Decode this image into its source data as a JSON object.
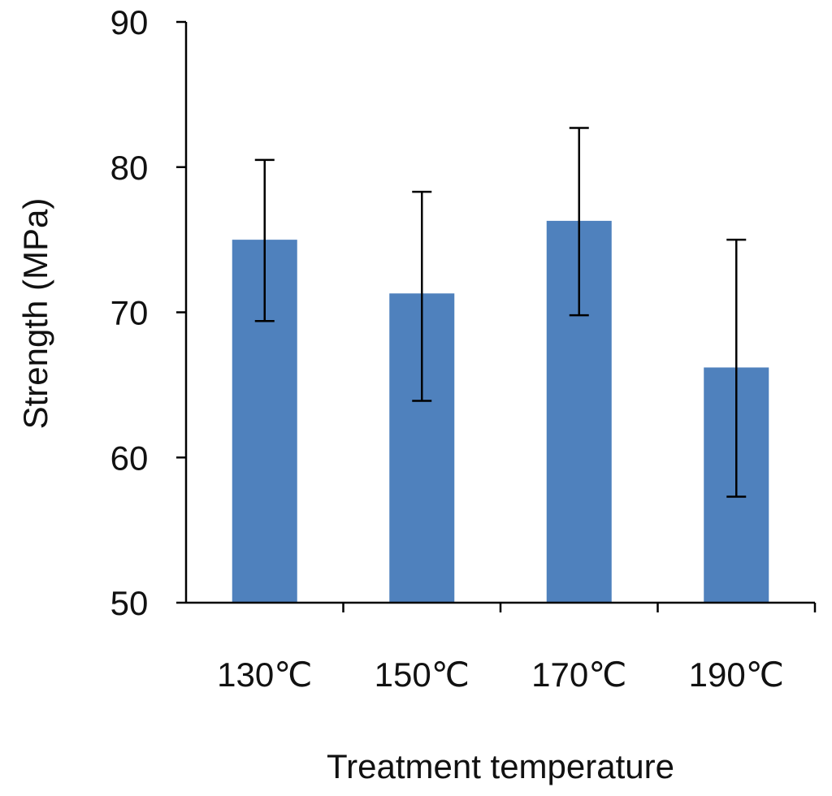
{
  "chart_data": {
    "type": "bar",
    "title": "",
    "xlabel": "Treatment temperature",
    "ylabel": "Strength (MPa)",
    "ylim": [
      50,
      90
    ],
    "yticks": [
      50,
      60,
      70,
      80,
      90
    ],
    "grid": false,
    "legend": "none",
    "categories": [
      "130℃",
      "150℃",
      "170℃",
      "190℃"
    ],
    "series": [
      {
        "name": "Strength",
        "color": "#4F81BD",
        "values": [
          75.0,
          71.3,
          76.3,
          66.2
        ],
        "error_high": [
          80.5,
          78.3,
          82.7,
          75.0
        ],
        "error_low": [
          69.4,
          63.9,
          69.8,
          57.3
        ]
      }
    ]
  }
}
